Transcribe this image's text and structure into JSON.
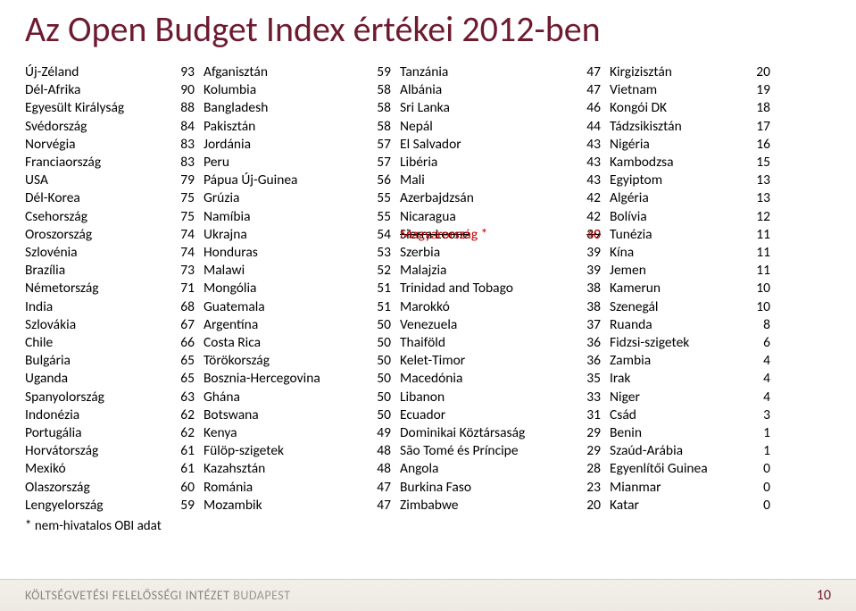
{
  "title": "Az Open Budget Index értékei 2012-ben",
  "footnote": "* nem-hivatalos OBI adat",
  "footer": {
    "inst": "KÖLTSÉGVETÉSI FELELŐSSÉGI INTÉZET",
    "city": "BUDAPEST",
    "page": "10"
  },
  "highlight": {
    "strike_name": "Sierra Leone",
    "strike_val": "39",
    "name": "Magyarország *",
    "val": "40"
  },
  "col1": [
    [
      "Új-Zéland",
      "93"
    ],
    [
      "Dél-Afrika",
      "90"
    ],
    [
      "Egyesült Királyság",
      "88"
    ],
    [
      "Svédország",
      "84"
    ],
    [
      "Norvégia",
      "83"
    ],
    [
      "Franciaország",
      "83"
    ],
    [
      "USA",
      "79"
    ],
    [
      "Dél-Korea",
      "75"
    ],
    [
      "Csehország",
      "75"
    ],
    [
      "Oroszország",
      "74"
    ],
    [
      "Szlovénia",
      "74"
    ],
    [
      "Brazília",
      "73"
    ],
    [
      "Németország",
      "71"
    ],
    [
      "India",
      "68"
    ],
    [
      "Szlovákia",
      "67"
    ],
    [
      "Chile",
      "66"
    ],
    [
      "Bulgária",
      "65"
    ],
    [
      "Uganda",
      "65"
    ],
    [
      "Spanyolország",
      "63"
    ],
    [
      "Indonézia",
      "62"
    ],
    [
      "Portugália",
      "62"
    ],
    [
      "Horvátország",
      "61"
    ],
    [
      "Mexikó",
      "61"
    ],
    [
      "Olaszország",
      "60"
    ],
    [
      "Lengyelország",
      "59"
    ]
  ],
  "col2": [
    [
      "Afganisztán",
      "59"
    ],
    [
      "Kolumbia",
      "58"
    ],
    [
      "Bangladesh",
      "58"
    ],
    [
      "Pakisztán",
      "58"
    ],
    [
      "Jordánia",
      "57"
    ],
    [
      "Peru",
      "57"
    ],
    [
      "Pápua Új-Guinea",
      "56"
    ],
    [
      "Grúzia",
      "55"
    ],
    [
      "Namíbia",
      "55"
    ],
    [
      "Ukrajna",
      "54"
    ],
    [
      "Honduras",
      "53"
    ],
    [
      "Malawi",
      "52"
    ],
    [
      "Mongólia",
      "51"
    ],
    [
      "Guatemala",
      "51"
    ],
    [
      "Argentína",
      "50"
    ],
    [
      "Costa Rica",
      "50"
    ],
    [
      "Törökország",
      "50"
    ],
    [
      "Bosznia-Hercegovina",
      "50"
    ],
    [
      "Ghána",
      "50"
    ],
    [
      "Botswana",
      "50"
    ],
    [
      "Kenya",
      "49"
    ],
    [
      "Fülöp-szigetek",
      "48"
    ],
    [
      "Kazahsztán",
      "48"
    ],
    [
      "Románia",
      "47"
    ],
    [
      "Mozambik",
      "47"
    ]
  ],
  "col3_before": [
    [
      "Tanzánia",
      "47"
    ],
    [
      "Albánia",
      "47"
    ],
    [
      "Sri Lanka",
      "46"
    ],
    [
      "Nepál",
      "44"
    ],
    [
      "El Salvador",
      "43"
    ],
    [
      "Libéria",
      "43"
    ],
    [
      "Mali",
      "43"
    ],
    [
      "Azerbajdzsán",
      "42"
    ],
    [
      "Nicaragua",
      "42"
    ]
  ],
  "col3_after": [
    [
      "Szerbia",
      "39"
    ],
    [
      "Malajzia",
      "39"
    ],
    [
      "Trinidad and Tobago",
      "38"
    ],
    [
      "Marokkó",
      "38"
    ],
    [
      "Venezuela",
      "37"
    ],
    [
      "Thaiföld",
      "36"
    ],
    [
      "Kelet-Timor",
      "36"
    ],
    [
      "Macedónia",
      "35"
    ],
    [
      "Libanon",
      "33"
    ],
    [
      "Ecuador",
      "31"
    ],
    [
      "Dominikai Köztársaság",
      "29"
    ],
    [
      "São Tomé és Príncipe",
      "29"
    ],
    [
      "Angola",
      "28"
    ],
    [
      "Burkina Faso",
      "23"
    ],
    [
      "Zimbabwe",
      "20"
    ]
  ],
  "col4": [
    [
      "Kirgizisztán",
      "20"
    ],
    [
      "Vietnam",
      "19"
    ],
    [
      "Kongói DK",
      "18"
    ],
    [
      "Tádzsikisztán",
      "17"
    ],
    [
      "Nigéria",
      "16"
    ],
    [
      "Kambodzsa",
      "15"
    ],
    [
      "Egyiptom",
      "13"
    ],
    [
      "Algéria",
      "13"
    ],
    [
      "Bolívia",
      "12"
    ],
    [
      "Tunézia",
      "11"
    ],
    [
      "Kína",
      "11"
    ],
    [
      "Jemen",
      "11"
    ],
    [
      "Kamerun",
      "10"
    ],
    [
      "Szenegál",
      "10"
    ],
    [
      "Ruanda",
      "8"
    ],
    [
      "Fidzsi-szigetek",
      "6"
    ],
    [
      "Zambia",
      "4"
    ],
    [
      "Irak",
      "4"
    ],
    [
      "Niger",
      "4"
    ],
    [
      "Csád",
      "3"
    ],
    [
      "Benin",
      "1"
    ],
    [
      "Szaúd-Arábia",
      "1"
    ],
    [
      "Egyenlítői Guinea",
      "0"
    ],
    [
      "Mianmar",
      "0"
    ],
    [
      "Katar",
      "0"
    ]
  ]
}
